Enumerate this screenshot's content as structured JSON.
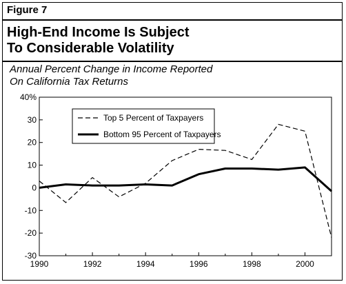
{
  "figure_label": "Figure 7",
  "title_line1": "High-End Income Is Subject",
  "title_line2": "To Considerable Volatility",
  "subtitle_line1": "Annual Percent Change in Income Reported",
  "subtitle_line2": "On California Tax Returns",
  "chart_data": {
    "type": "line",
    "x": [
      1990,
      1991,
      1992,
      1993,
      1994,
      1995,
      1996,
      1997,
      1998,
      1999,
      2000,
      2001
    ],
    "series": [
      {
        "name": "Top 5 Percent of Taxpayers",
        "style": "dashed",
        "values": [
          3,
          -6.5,
          4.5,
          -4,
          2,
          12,
          17,
          16.5,
          12.5,
          28,
          25,
          -22
        ]
      },
      {
        "name": "Bottom 95 Percent of Taxpayers",
        "style": "solid-thick",
        "values": [
          0,
          1.5,
          1,
          1,
          1.5,
          1,
          6,
          8.5,
          8.5,
          8,
          9,
          -1.5
        ]
      }
    ],
    "xlim": [
      1990,
      2001
    ],
    "ylim": [
      -30,
      40
    ],
    "x_ticks": [
      1990,
      1992,
      1994,
      1996,
      1998,
      2000
    ],
    "y_ticks": [
      -30,
      -20,
      -10,
      0,
      10,
      20,
      30,
      40
    ],
    "y_tick_labels": [
      "-30",
      "-20",
      "-10",
      "0",
      "10",
      "20",
      "30",
      "40%"
    ],
    "legend_position": "top-left-inside",
    "grid": false
  }
}
